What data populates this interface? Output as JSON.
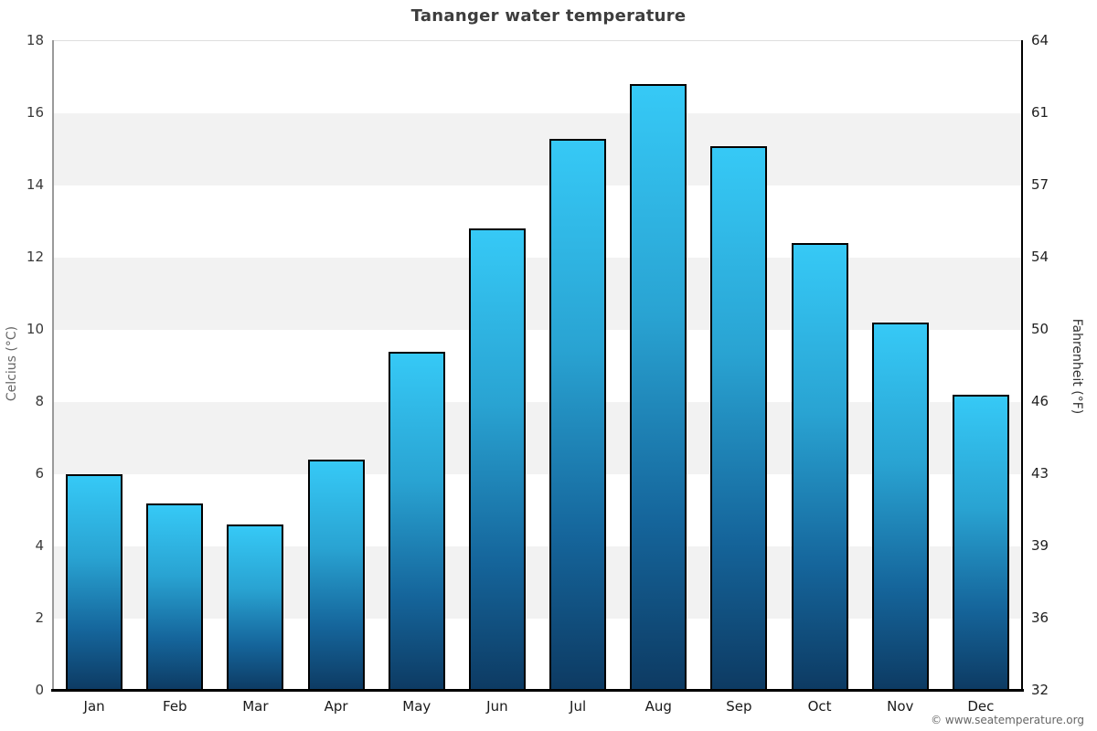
{
  "title": "Tananger water temperature",
  "footer": {
    "copyright": "© www.seatemperature.org"
  },
  "chart_data": {
    "type": "bar",
    "title": "Tananger water temperature",
    "categories": [
      "Jan",
      "Feb",
      "Mar",
      "Apr",
      "May",
      "Jun",
      "Jul",
      "Aug",
      "Sep",
      "Oct",
      "Nov",
      "Dec"
    ],
    "values": [
      6.0,
      5.2,
      4.6,
      6.4,
      9.4,
      12.8,
      15.3,
      16.8,
      15.1,
      12.4,
      10.2,
      8.2
    ],
    "unit": "°C",
    "ylabel_left": "Celcius (°C)",
    "ylabel_right": "Fahrenheit (°F)",
    "ylim_c": [
      0,
      18
    ],
    "yticks_c": [
      0,
      2,
      4,
      6,
      8,
      10,
      12,
      14,
      16,
      18
    ],
    "yticks_f": [
      32,
      36,
      39,
      43,
      46,
      50,
      54,
      57,
      61,
      64
    ],
    "grid": "alternating horizontal bands, no vertical grid",
    "legend": "none",
    "colors": {
      "bar_gradient_top": "#36c9f6",
      "bar_gradient_bottom": "#0d3a62",
      "bar_border": "#000000",
      "band_light": "#ffffff",
      "band_dark": "#f2f2f2",
      "title_color": "#3d3d3d",
      "axis_label_color": "#666666",
      "tick_label_color": "#3a3a3a",
      "left_spine_color": "#9a9a9a",
      "right_spine_color": "#000000",
      "bottom_axis_color": "#000000"
    }
  }
}
